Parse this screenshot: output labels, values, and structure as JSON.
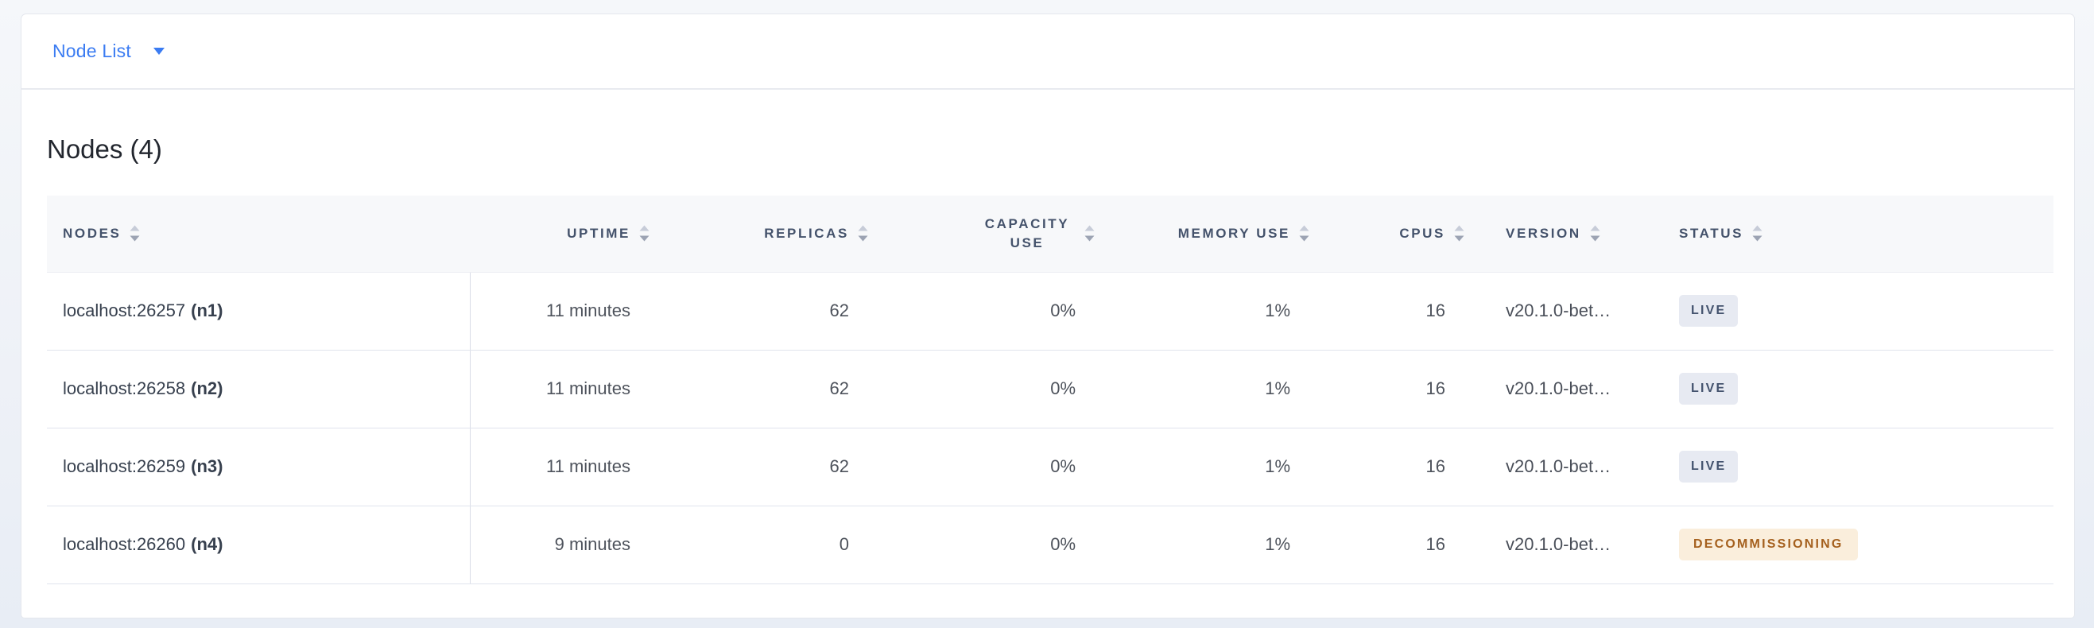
{
  "view_selector": {
    "label": "Node List"
  },
  "heading": "Nodes (4)",
  "table": {
    "columns": [
      {
        "key": "node",
        "label": "NODES",
        "align": "left"
      },
      {
        "key": "uptime",
        "label": "UPTIME",
        "align": "right"
      },
      {
        "key": "replicas",
        "label": "REPLICAS",
        "align": "right"
      },
      {
        "key": "capacity_use",
        "label": "CAPACITY USE",
        "align": "right",
        "wrap": true
      },
      {
        "key": "memory_use",
        "label": "MEMORY USE",
        "align": "right"
      },
      {
        "key": "cpus",
        "label": "CPUS",
        "align": "right"
      },
      {
        "key": "version",
        "label": "VERSION",
        "align": "left"
      },
      {
        "key": "status",
        "label": "STATUS",
        "align": "left"
      }
    ],
    "rows": [
      {
        "address": "localhost:26257",
        "node_id": "(n1)",
        "uptime": "11 minutes",
        "replicas": "62",
        "capacity_use": "0%",
        "memory_use": "1%",
        "cpus": "16",
        "version": "v20.1.0-bet…",
        "status": "LIVE",
        "status_type": "live"
      },
      {
        "address": "localhost:26258",
        "node_id": "(n2)",
        "uptime": "11 minutes",
        "replicas": "62",
        "capacity_use": "0%",
        "memory_use": "1%",
        "cpus": "16",
        "version": "v20.1.0-bet…",
        "status": "LIVE",
        "status_type": "live"
      },
      {
        "address": "localhost:26259",
        "node_id": "(n3)",
        "uptime": "11 minutes",
        "replicas": "62",
        "capacity_use": "0%",
        "memory_use": "1%",
        "cpus": "16",
        "version": "v20.1.0-bet…",
        "status": "LIVE",
        "status_type": "live"
      },
      {
        "address": "localhost:26260",
        "node_id": "(n4)",
        "uptime": "9 minutes",
        "replicas": "0",
        "capacity_use": "0%",
        "memory_use": "1%",
        "cpus": "16",
        "version": "v20.1.0-bet…",
        "status": "DECOMMISSIONING",
        "status_type": "decommissioning"
      }
    ]
  },
  "colors": {
    "accent_blue": "#3B7CF2",
    "sort_icon_up": "#C7CCD8",
    "sort_icon_down": "#9CA3B3",
    "live_badge_bg": "#E7EAF2",
    "live_badge_text": "#44536E",
    "decommissioning_badge_bg": "#FAEEDC",
    "decommissioning_badge_text": "#A5601E"
  }
}
